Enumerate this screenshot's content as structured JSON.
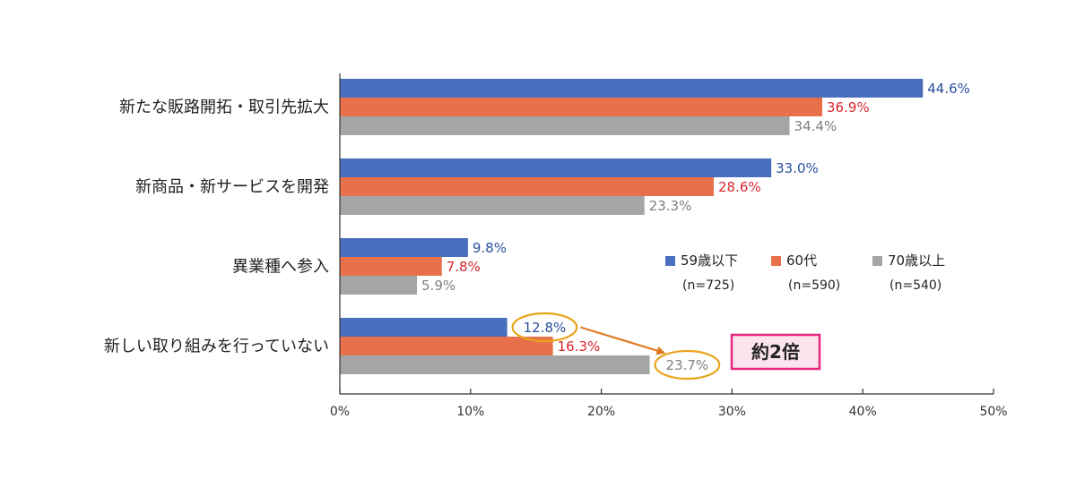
{
  "chart_data": {
    "type": "bar",
    "orientation": "horizontal",
    "categories": [
      "新たな販路開拓・取引先拡大",
      "新商品・新サービスを開発",
      "異業種へ参入",
      "新しい取り組みを行っていない"
    ],
    "series": [
      {
        "name": "59歳以下",
        "n_label": "(n=725)",
        "values": [
          44.6,
          33.0,
          9.8,
          12.8
        ],
        "color": "#4a6fbe",
        "label_color": "#2a4f9e"
      },
      {
        "name": "60代",
        "n_label": "(n=590)",
        "values": [
          36.9,
          28.6,
          7.8,
          16.3
        ],
        "color": "#e8704a",
        "label_color": "#d8262e"
      },
      {
        "name": "70歳以上",
        "n_label": "(n=540)",
        "values": [
          34.4,
          23.3,
          5.9,
          23.7
        ],
        "color": "#a5a5a5",
        "label_color": "#7f7f7f"
      }
    ],
    "value_labels": [
      [
        "44.6%",
        "33.0%",
        "9.8%",
        "12.8%"
      ],
      [
        "36.9%",
        "28.6%",
        "7.8%",
        "16.3%"
      ],
      [
        "34.4%",
        "23.3%",
        "5.9%",
        "23.7%"
      ]
    ],
    "xlim": [
      0,
      50
    ],
    "xticks": [
      0,
      10,
      20,
      30,
      40,
      50
    ],
    "xtick_labels": [
      "0%",
      "10%",
      "20%",
      "30%",
      "40%",
      "50%"
    ],
    "grid": false,
    "legend_position": "right-middle",
    "annotation": {
      "text": "約2倍",
      "from_category": 3,
      "from_series": 0,
      "to_series": 2,
      "highlight_color": "#e8a51c",
      "arrow_color": "#e07a22",
      "box_border_color": "#e6257f",
      "box_fill_color": "#fce4ef"
    }
  }
}
